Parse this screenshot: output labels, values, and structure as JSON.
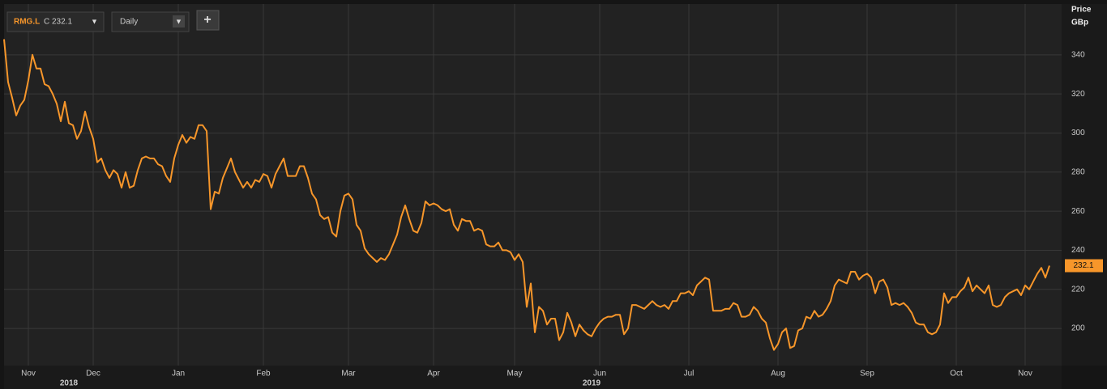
{
  "toolbar": {
    "symbol": "RMG.L",
    "close": "C 232.1",
    "interval": "Daily",
    "add": "+"
  },
  "chart_data": {
    "type": "line",
    "y_axis_title": "Price",
    "y_axis_unit": "GBp",
    "color": "#f7962a",
    "values": [
      348,
      326,
      318,
      309,
      314,
      317,
      327,
      340,
      333,
      333,
      325,
      324,
      320,
      315,
      306,
      316,
      305,
      304,
      297,
      301,
      311,
      303,
      297,
      285,
      287,
      281,
      277,
      281,
      279,
      272,
      280,
      272,
      273,
      281,
      287,
      288,
      287,
      287,
      284,
      283,
      278,
      275,
      287,
      294,
      299,
      295,
      298,
      297,
      304,
      304,
      301,
      261,
      270,
      269,
      277,
      282,
      287,
      280,
      276,
      272,
      275,
      272,
      276,
      275,
      279,
      278,
      272,
      279,
      283,
      287,
      278,
      278,
      278,
      283,
      283,
      277,
      269,
      266,
      258,
      256,
      257,
      249,
      247,
      260,
      268,
      269,
      266,
      253,
      250,
      241,
      238,
      236,
      234,
      236,
      235,
      238,
      243,
      248,
      257,
      263,
      256,
      250,
      249,
      254,
      265,
      263,
      264,
      263,
      261,
      260,
      261,
      253,
      250,
      256,
      255,
      255,
      250,
      251,
      250,
      243,
      242,
      242,
      244,
      240,
      240,
      239,
      235,
      238,
      234,
      211,
      223,
      198,
      211,
      209,
      202,
      205,
      205,
      194,
      198,
      208,
      203,
      196,
      202,
      199,
      197,
      196,
      200,
      203,
      205,
      206,
      206,
      207,
      207,
      197,
      200,
      212,
      212,
      211,
      210,
      212,
      214,
      212,
      211,
      212,
      210,
      214,
      214,
      218,
      218,
      219,
      217,
      222,
      224,
      226,
      225,
      209,
      209,
      209,
      210,
      210,
      213,
      212,
      206,
      206,
      207,
      211,
      209,
      205,
      203,
      195,
      189,
      192,
      198,
      200,
      190,
      191,
      199,
      200,
      206,
      205,
      209,
      206,
      207,
      210,
      214,
      222,
      225,
      224,
      223,
      229,
      229,
      225,
      227,
      228,
      226,
      218,
      224,
      225,
      221,
      212,
      213,
      212,
      213,
      211,
      208,
      203,
      202,
      202,
      198,
      197,
      198,
      202,
      218,
      213,
      216,
      216,
      219,
      221,
      226,
      219,
      222,
      220,
      218,
      222,
      212,
      211,
      212,
      216,
      218,
      219,
      220,
      217,
      222,
      220,
      224,
      228,
      231,
      226,
      232.1
    ],
    "ylim": [
      181,
      366
    ],
    "yticks": [
      200,
      220,
      240,
      260,
      280,
      300,
      320,
      340
    ],
    "xlim": [
      0,
      261
    ],
    "xticks": [
      {
        "value": 6,
        "label": "Nov"
      },
      {
        "value": 22,
        "label": "Dec"
      },
      {
        "value": 43,
        "label": "Jan"
      },
      {
        "value": 64,
        "label": "Feb"
      },
      {
        "value": 85,
        "label": "Mar"
      },
      {
        "value": 106,
        "label": "Apr"
      },
      {
        "value": 126,
        "label": "May"
      },
      {
        "value": 147,
        "label": "Jun"
      },
      {
        "value": 169,
        "label": "Jul"
      },
      {
        "value": 191,
        "label": "Aug"
      },
      {
        "value": 213,
        "label": "Sep"
      },
      {
        "value": 235,
        "label": "Oct"
      },
      {
        "value": 252,
        "label": "Nov"
      }
    ],
    "year_ticks": [
      {
        "value": 16,
        "label": "2018"
      },
      {
        "value": 145,
        "label": "2019"
      }
    ],
    "grid": true
  }
}
